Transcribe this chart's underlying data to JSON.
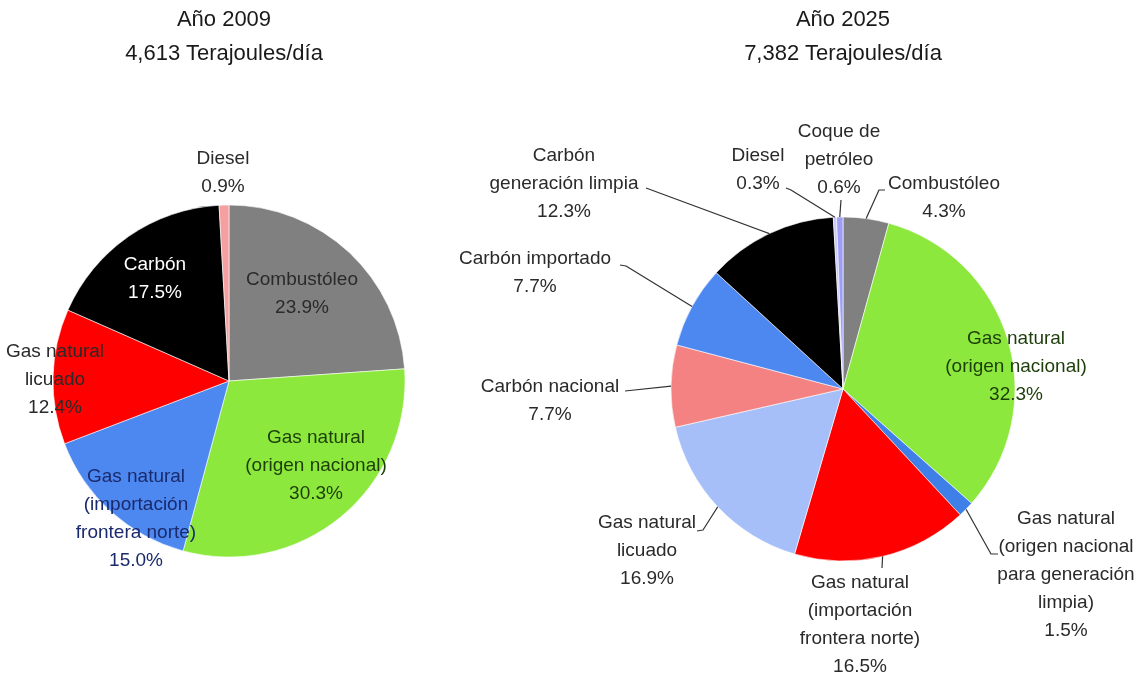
{
  "chart_data": [
    {
      "type": "pie",
      "title": "Año 2009",
      "subtitle": "4,613 Terajoules/día",
      "categories": [
        "Combustóleo",
        "Gas natural (origen nacional)",
        "Gas natural (importación frontera norte)",
        "Gas natural licuado",
        "Carbón",
        "Diesel"
      ],
      "values": [
        23.9,
        30.3,
        15.0,
        12.4,
        17.5,
        0.9
      ],
      "value_labels": [
        "23.9%",
        "30.3%",
        "15.0%",
        "12.4%",
        "17.5%",
        "0.9%"
      ],
      "colors": [
        "#808080",
        "#8ce83c",
        "#4d88f0",
        "#ff0000",
        "#000000",
        "#f4a0a0"
      ]
    },
    {
      "type": "pie",
      "title": "Año 2025",
      "subtitle": "7,382 Terajoules/día",
      "categories": [
        "Combustóleo",
        "Gas natural (origen nacional)",
        "Gas natural (origen nacional para generación limpia)",
        "Gas natural (importación frontera norte)",
        "Gas natural licuado",
        "Carbón nacional",
        "Carbón importado",
        "Carbón generación limpia",
        "Diesel",
        "Coque de petróleo"
      ],
      "values": [
        4.3,
        32.3,
        1.5,
        16.5,
        16.9,
        7.7,
        7.7,
        12.3,
        0.3,
        0.6
      ],
      "value_labels": [
        "4.3%",
        "32.3%",
        "1.5%",
        "16.5%",
        "16.9%",
        "7.7%",
        "7.7%",
        "12.3%",
        "0.3%",
        "0.6%"
      ],
      "colors": [
        "#808080",
        "#8ce83c",
        "#3f7fe8",
        "#ff0000",
        "#a6bff8",
        "#f48282",
        "#4d88f0",
        "#000000",
        "#c8c8ff",
        "#9e9ef5"
      ]
    }
  ]
}
